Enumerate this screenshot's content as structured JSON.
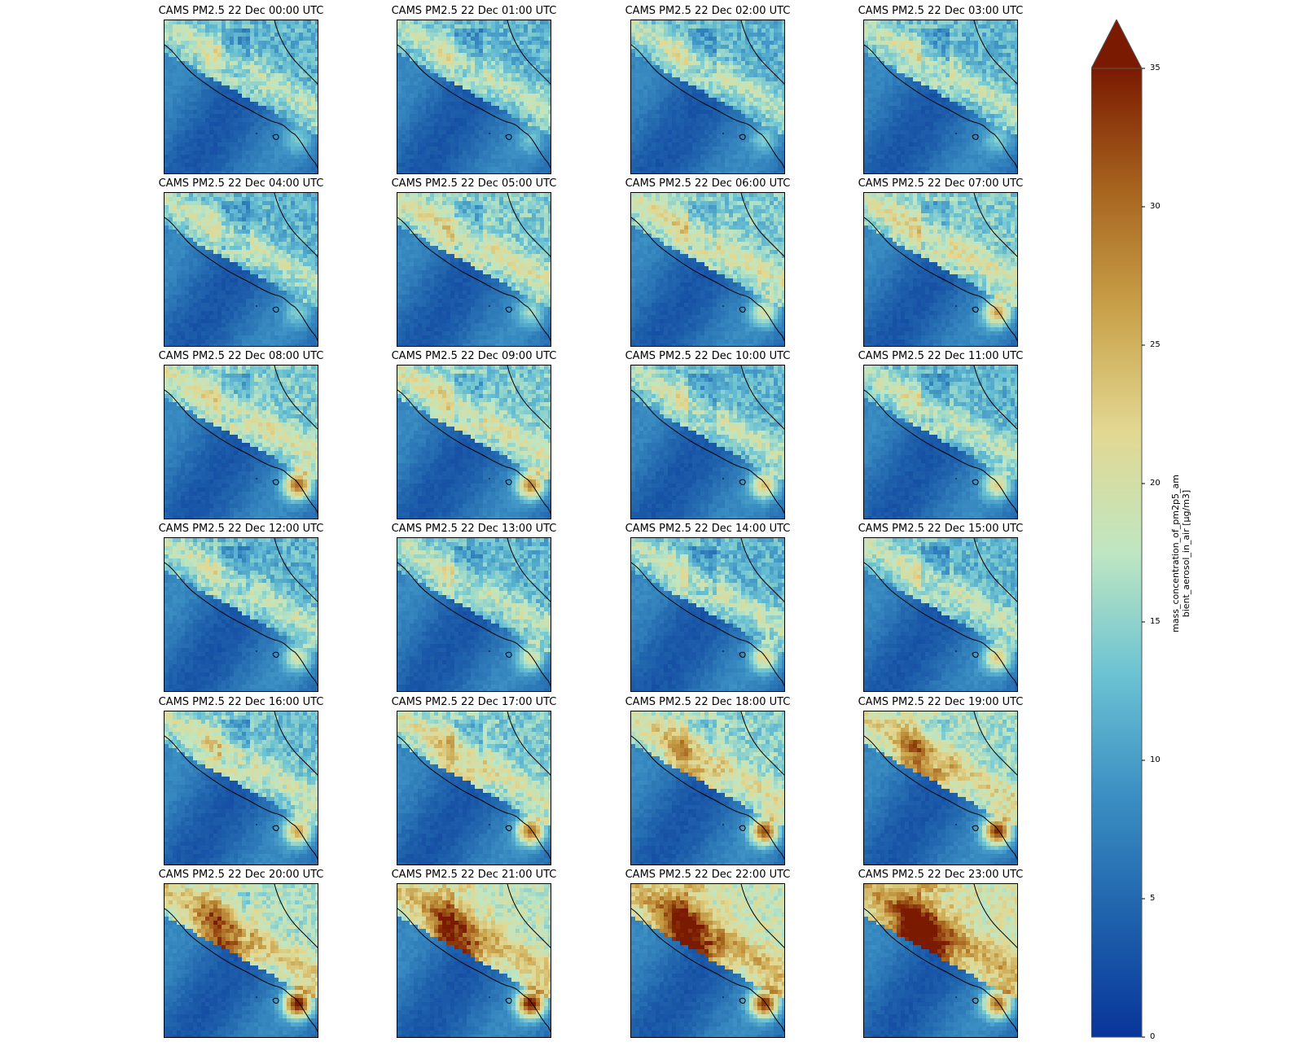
{
  "panels": [
    {
      "title": "CAMS PM2.5 22 Dec 00:00 UTC",
      "hour": 0
    },
    {
      "title": "CAMS PM2.5 22 Dec 01:00 UTC",
      "hour": 1
    },
    {
      "title": "CAMS PM2.5 22 Dec 02:00 UTC",
      "hour": 2
    },
    {
      "title": "CAMS PM2.5 22 Dec 03:00 UTC",
      "hour": 3
    },
    {
      "title": "CAMS PM2.5 22 Dec 04:00 UTC",
      "hour": 4
    },
    {
      "title": "CAMS PM2.5 22 Dec 05:00 UTC",
      "hour": 5
    },
    {
      "title": "CAMS PM2.5 22 Dec 06:00 UTC",
      "hour": 6
    },
    {
      "title": "CAMS PM2.5 22 Dec 07:00 UTC",
      "hour": 7
    },
    {
      "title": "CAMS PM2.5 22 Dec 08:00 UTC",
      "hour": 8
    },
    {
      "title": "CAMS PM2.5 22 Dec 09:00 UTC",
      "hour": 9
    },
    {
      "title": "CAMS PM2.5 22 Dec 10:00 UTC",
      "hour": 10
    },
    {
      "title": "CAMS PM2.5 22 Dec 11:00 UTC",
      "hour": 11
    },
    {
      "title": "CAMS PM2.5 22 Dec 12:00 UTC",
      "hour": 12
    },
    {
      "title": "CAMS PM2.5 22 Dec 13:00 UTC",
      "hour": 13
    },
    {
      "title": "CAMS PM2.5 22 Dec 14:00 UTC",
      "hour": 14
    },
    {
      "title": "CAMS PM2.5 22 Dec 15:00 UTC",
      "hour": 15
    },
    {
      "title": "CAMS PM2.5 22 Dec 16:00 UTC",
      "hour": 16
    },
    {
      "title": "CAMS PM2.5 22 Dec 17:00 UTC",
      "hour": 17
    },
    {
      "title": "CAMS PM2.5 22 Dec 18:00 UTC",
      "hour": 18
    },
    {
      "title": "CAMS PM2.5 22 Dec 19:00 UTC",
      "hour": 19
    },
    {
      "title": "CAMS PM2.5 22 Dec 20:00 UTC",
      "hour": 20
    },
    {
      "title": "CAMS PM2.5 22 Dec 21:00 UTC",
      "hour": 21
    },
    {
      "title": "CAMS PM2.5 22 Dec 22:00 UTC",
      "hour": 22
    },
    {
      "title": "CAMS PM2.5 22 Dec 23:00 UTC",
      "hour": 23
    }
  ],
  "colorbar": {
    "label_line1": "mass_concentration_of_pm2p5_am",
    "label_line2": "bient_aerosol_in_air [µg/m3]",
    "ticks": [
      "0",
      "5",
      "10",
      "15",
      "20",
      "25",
      "30",
      "35"
    ],
    "colors": [
      "#08359a",
      "#1f62ac",
      "#3b8fc3",
      "#6cc3d3",
      "#bfe6c2",
      "#e2d892",
      "#c9a24a",
      "#a7641f",
      "#7a1a00"
    ]
  },
  "chart_data": {
    "type": "heatmap",
    "grid": "4 columns x 6 rows of map panels",
    "vmin": 0,
    "vmax": 35,
    "extend": "max",
    "colormap": "RdYlBu_r-like (blue to yellow to brown)",
    "panel_max_estimate_ug_m3": [
      28,
      27,
      26,
      25,
      27,
      30,
      33,
      35,
      35,
      35,
      35,
      34,
      32,
      32,
      34,
      34,
      35,
      35,
      35,
      35,
      35,
      35,
      35,
      34
    ],
    "grid_on": false,
    "legend": "colorbar right"
  }
}
